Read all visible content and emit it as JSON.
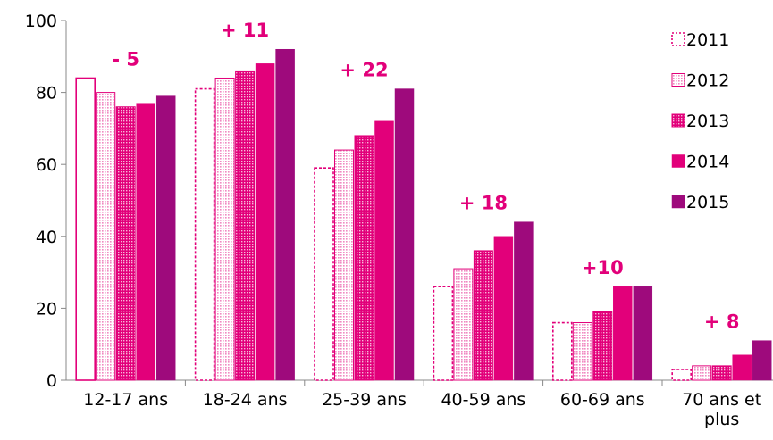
{
  "chart_data": {
    "type": "bar",
    "categories": [
      "12-17 ans",
      "18-24 ans",
      "25-39 ans",
      "40-59 ans",
      "60-69 ans",
      "70 ans et plus"
    ],
    "category_lines": [
      [
        "12-17 ans"
      ],
      [
        "18-24 ans"
      ],
      [
        "25-39 ans"
      ],
      [
        "40-59 ans"
      ],
      [
        "60-69 ans"
      ],
      [
        "70 ans et",
        "plus"
      ]
    ],
    "series": [
      {
        "name": "2011",
        "values": [
          84,
          81,
          59,
          26,
          16,
          3
        ],
        "color": "#e2007a",
        "style": "outline"
      },
      {
        "name": "2012",
        "values": [
          80,
          84,
          64,
          31,
          16,
          4
        ],
        "color": "#e2007a",
        "style": "light-pattern"
      },
      {
        "name": "2013",
        "values": [
          76,
          86,
          68,
          36,
          19,
          4
        ],
        "color": "#e2007a",
        "style": "dense-pattern"
      },
      {
        "name": "2014",
        "values": [
          77,
          88,
          72,
          40,
          26,
          7
        ],
        "color": "#e2007a",
        "style": "solid"
      },
      {
        "name": "2015",
        "values": [
          79,
          92,
          81,
          44,
          26,
          11
        ],
        "color": "#9e0a7c",
        "style": "solid"
      }
    ],
    "annotations": [
      "- 5",
      "+ 11",
      "+ 22",
      "+ 18",
      "+10",
      "+ 8"
    ],
    "annotation_color": "#e2007a",
    "ylim": [
      0,
      100
    ],
    "yticks": [
      "0",
      "20",
      "40",
      "60",
      "80",
      "100"
    ],
    "title": "",
    "xlabel": "",
    "ylabel": "",
    "grid": false,
    "legend_position": "right"
  }
}
